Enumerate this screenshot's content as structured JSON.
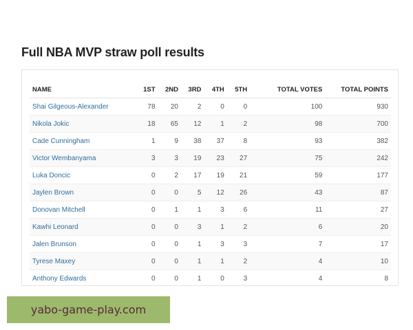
{
  "title": "Full NBA MVP straw poll results",
  "table": {
    "headers": [
      "NAME",
      "1ST",
      "2ND",
      "3RD",
      "4TH",
      "5TH",
      "TOTAL VOTES",
      "TOTAL POINTS"
    ],
    "rows": [
      {
        "name": "Shai Gilgeous-Alexander",
        "first": "78",
        "second": "20",
        "third": "2",
        "fourth": "0",
        "fifth": "0",
        "total_votes": "100",
        "total_points": "930"
      },
      {
        "name": "Nikola Jokic",
        "first": "18",
        "second": "65",
        "third": "12",
        "fourth": "1",
        "fifth": "2",
        "total_votes": "98",
        "total_points": "700"
      },
      {
        "name": "Cade Cunningham",
        "first": "1",
        "second": "9",
        "third": "38",
        "fourth": "37",
        "fifth": "8",
        "total_votes": "93",
        "total_points": "382"
      },
      {
        "name": "Victor Wembanyama",
        "first": "3",
        "second": "3",
        "third": "19",
        "fourth": "23",
        "fifth": "27",
        "total_votes": "75",
        "total_points": "242"
      },
      {
        "name": "Luka Doncic",
        "first": "0",
        "second": "2",
        "third": "17",
        "fourth": "19",
        "fifth": "21",
        "total_votes": "59",
        "total_points": "177"
      },
      {
        "name": "Jaylen Brown",
        "first": "0",
        "second": "0",
        "third": "5",
        "fourth": "12",
        "fifth": "26",
        "total_votes": "43",
        "total_points": "87"
      },
      {
        "name": "Donovan Mitchell",
        "first": "0",
        "second": "1",
        "third": "1",
        "fourth": "3",
        "fifth": "6",
        "total_votes": "11",
        "total_points": "27"
      },
      {
        "name": "Kawhi Leonard",
        "first": "0",
        "second": "0",
        "third": "3",
        "fourth": "1",
        "fifth": "2",
        "total_votes": "6",
        "total_points": "20"
      },
      {
        "name": "Jalen Brunson",
        "first": "0",
        "second": "0",
        "third": "1",
        "fourth": "3",
        "fifth": "3",
        "total_votes": "7",
        "total_points": "17"
      },
      {
        "name": "Tyrese Maxey",
        "first": "0",
        "second": "0",
        "third": "1",
        "fourth": "1",
        "fifth": "2",
        "total_votes": "4",
        "total_points": "10"
      },
      {
        "name": "Anthony Edwards",
        "first": "0",
        "second": "0",
        "third": "1",
        "fourth": "0",
        "fifth": "3",
        "total_votes": "4",
        "total_points": "8"
      }
    ]
  },
  "watermark": "yabo-game-play.com",
  "colors": {
    "link": "#2f6e9e",
    "watermark_bg": "#9db96c",
    "watermark_text": "#5a2a3a"
  }
}
